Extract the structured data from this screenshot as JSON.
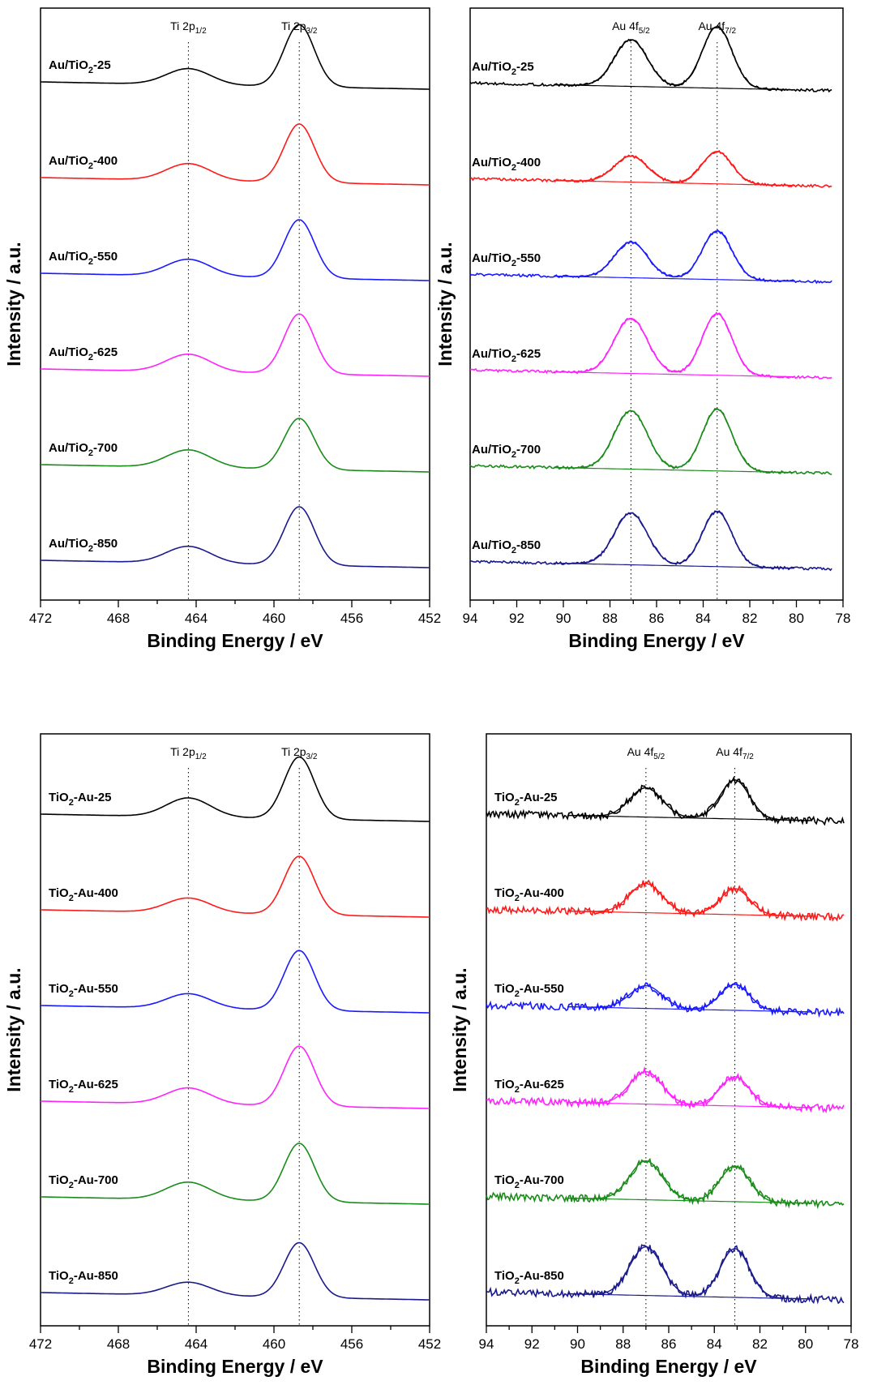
{
  "colors": {
    "black": "#000000",
    "red": "#ff1a1a",
    "blue": "#1a1aff",
    "magenta": "#ff22ff",
    "green": "#1a8c1a",
    "navy": "#1a1a8c"
  },
  "chart_data": [
    {
      "type": "line",
      "xlabel": "Binding Energy / eV",
      "ylabel": "Intensity / a.u.",
      "xlim": [
        472,
        452
      ],
      "xticks": [
        "472",
        "468",
        "464",
        "460",
        "456",
        "452"
      ],
      "reference_lines": [
        {
          "x": 464.4,
          "label_main": "Ti 2p",
          "label_sub": "1/2"
        },
        {
          "x": 458.7,
          "label_main": "Ti 2p",
          "label_sub": "3/2"
        }
      ],
      "series": [
        {
          "name_pre": "Au/TiO",
          "name_sub": "2",
          "name_post": "-25",
          "color": "black",
          "peak1": 0.22,
          "peak2": 0.85
        },
        {
          "name_pre": "Au/TiO",
          "name_sub": "2",
          "name_post": "-400",
          "color": "red",
          "peak1": 0.23,
          "peak2": 0.8
        },
        {
          "name_pre": "Au/TiO",
          "name_sub": "2",
          "name_post": "-550",
          "color": "blue",
          "peak1": 0.23,
          "peak2": 0.8
        },
        {
          "name_pre": "Au/TiO",
          "name_sub": "2",
          "name_post": "-625",
          "color": "magenta",
          "peak1": 0.24,
          "peak2": 0.82
        },
        {
          "name_pre": "Au/TiO",
          "name_sub": "2",
          "name_post": "-700",
          "color": "green",
          "peak1": 0.24,
          "peak2": 0.7
        },
        {
          "name_pre": "Au/TiO",
          "name_sub": "2",
          "name_post": "-850",
          "color": "navy",
          "peak1": 0.23,
          "peak2": 0.8
        }
      ]
    },
    {
      "type": "line",
      "xlabel": "Binding Energy / eV",
      "ylabel": "Intensity / a.u.",
      "xlim": [
        94,
        78
      ],
      "xticks": [
        "94",
        "92",
        "90",
        "88",
        "86",
        "84",
        "82",
        "80",
        "78"
      ],
      "reference_lines": [
        {
          "x": 87.1,
          "label_main": "Au 4f",
          "label_sub": "5/2"
        },
        {
          "x": 83.4,
          "label_main": "Au 4f",
          "label_sub": "7/2"
        }
      ],
      "series": [
        {
          "name_pre": "Au/TiO",
          "name_sub": "2",
          "name_post": "-25",
          "color": "black",
          "peak1": 0.72,
          "peak2": 0.95
        },
        {
          "name_pre": "Au/TiO",
          "name_sub": "2",
          "name_post": "-400",
          "color": "red",
          "peak1": 0.4,
          "peak2": 0.5
        },
        {
          "name_pre": "Au/TiO",
          "name_sub": "2",
          "name_post": "-550",
          "color": "blue",
          "peak1": 0.55,
          "peak2": 0.75
        },
        {
          "name_pre": "Au/TiO",
          "name_sub": "2",
          "name_post": "-625",
          "color": "magenta",
          "peak1": 0.85,
          "peak2": 0.95
        },
        {
          "name_pre": "Au/TiO",
          "name_sub": "2",
          "name_post": "-700",
          "color": "green",
          "peak1": 0.9,
          "peak2": 0.95
        },
        {
          "name_pre": "Au/TiO",
          "name_sub": "2",
          "name_post": "-850",
          "color": "navy",
          "peak1": 0.8,
          "peak2": 0.85
        }
      ]
    },
    {
      "type": "line",
      "xlabel": "Binding Energy / eV",
      "ylabel": "Intensity / a.u.",
      "xlim": [
        472,
        452
      ],
      "xticks": [
        "472",
        "468",
        "464",
        "460",
        "456",
        "452"
      ],
      "reference_lines": [
        {
          "x": 464.4,
          "label_main": "Ti 2p",
          "label_sub": "1/2"
        },
        {
          "x": 458.7,
          "label_main": "Ti 2p",
          "label_sub": "3/2"
        }
      ],
      "series": [
        {
          "name_pre": "TiO",
          "name_sub": "2",
          "name_post": "-Au-25",
          "color": "black",
          "peak1": 0.26,
          "peak2": 0.85
        },
        {
          "name_pre": "TiO",
          "name_sub": "2",
          "name_post": "-Au-400",
          "color": "red",
          "peak1": 0.2,
          "peak2": 0.8
        },
        {
          "name_pre": "TiO",
          "name_sub": "2",
          "name_post": "-Au-550",
          "color": "blue",
          "peak1": 0.2,
          "peak2": 0.82
        },
        {
          "name_pre": "TiO",
          "name_sub": "2",
          "name_post": "-Au-625",
          "color": "magenta",
          "peak1": 0.22,
          "peak2": 0.82
        },
        {
          "name_pre": "TiO",
          "name_sub": "2",
          "name_post": "-Au-700",
          "color": "green",
          "peak1": 0.24,
          "peak2": 0.8
        },
        {
          "name_pre": "TiO",
          "name_sub": "2",
          "name_post": "-Au-850",
          "color": "navy",
          "peak1": 0.18,
          "peak2": 0.75
        }
      ]
    },
    {
      "type": "line",
      "xlabel": "Binding Energy / eV",
      "ylabel": "Intensity / a.u.",
      "xlim": [
        94,
        78
      ],
      "xticks": [
        "94",
        "92",
        "90",
        "88",
        "86",
        "84",
        "82",
        "80",
        "78"
      ],
      "reference_lines": [
        {
          "x": 87.0,
          "label_main": "Au 4f",
          "label_sub": "5/2"
        },
        {
          "x": 83.1,
          "label_main": "Au 4f",
          "label_sub": "7/2"
        }
      ],
      "series": [
        {
          "name_pre": "TiO",
          "name_sub": "2",
          "name_post": "-Au-25",
          "color": "black",
          "peak1": 0.45,
          "peak2": 0.6
        },
        {
          "name_pre": "TiO",
          "name_sub": "2",
          "name_post": "-Au-400",
          "color": "red",
          "peak1": 0.45,
          "peak2": 0.4
        },
        {
          "name_pre": "TiO",
          "name_sub": "2",
          "name_post": "-Au-550",
          "color": "blue",
          "peak1": 0.35,
          "peak2": 0.4
        },
        {
          "name_pre": "TiO",
          "name_sub": "2",
          "name_post": "-Au-625",
          "color": "magenta",
          "peak1": 0.5,
          "peak2": 0.45
        },
        {
          "name_pre": "TiO",
          "name_sub": "2",
          "name_post": "-Au-700",
          "color": "green",
          "peak1": 0.6,
          "peak2": 0.55
        },
        {
          "name_pre": "TiO",
          "name_sub": "2",
          "name_post": "-Au-850",
          "color": "navy",
          "peak1": 0.75,
          "peak2": 0.75
        }
      ]
    }
  ]
}
